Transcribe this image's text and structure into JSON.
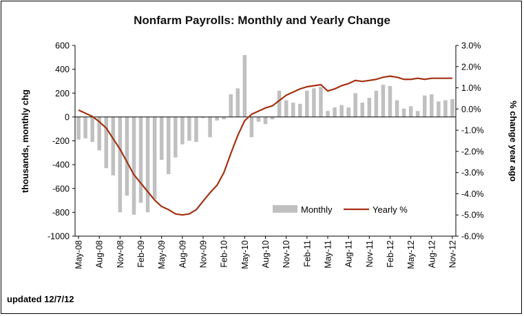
{
  "chart_data": {
    "type": "bar+line",
    "title": "Nonfarm Payrolls: Monthly and Yearly Change",
    "ylabel_left": "thousands, monthly chg",
    "ylabel_right": "% change year ago",
    "ylim_left": [
      -1000,
      600
    ],
    "ylim_right": [
      -6.0,
      3.0
    ],
    "y_ticks_left": [
      "600",
      "400",
      "200",
      "0",
      "-200",
      "-400",
      "-600",
      "-800",
      "-1000"
    ],
    "y_ticks_right": [
      "3.0%",
      "2.0%",
      "1.0%",
      "0.0%",
      "-1.0%",
      "-2.0%",
      "-3.0%",
      "-4.0%",
      "-5.0%",
      "-6.0%"
    ],
    "x_ticks": [
      "May-08",
      "Aug-08",
      "Nov-08",
      "Feb-09",
      "May-09",
      "Aug-09",
      "Nov-09",
      "Feb-10",
      "May-10",
      "Aug-10",
      "Nov-10",
      "Feb-11",
      "May-11",
      "Aug-11",
      "Nov-11",
      "Feb-12",
      "May-12",
      "Aug-12",
      "Nov-12"
    ],
    "categories": [
      "May-08",
      "Jun-08",
      "Jul-08",
      "Aug-08",
      "Sep-08",
      "Oct-08",
      "Nov-08",
      "Dec-08",
      "Jan-09",
      "Feb-09",
      "Mar-09",
      "Apr-09",
      "May-09",
      "Jun-09",
      "Jul-09",
      "Aug-09",
      "Sep-09",
      "Oct-09",
      "Nov-09",
      "Dec-09",
      "Jan-10",
      "Feb-10",
      "Mar-10",
      "Apr-10",
      "May-10",
      "Jun-10",
      "Jul-10",
      "Aug-10",
      "Sep-10",
      "Oct-10",
      "Nov-10",
      "Dec-10",
      "Jan-11",
      "Feb-11",
      "Mar-11",
      "Apr-11",
      "May-11",
      "Jun-11",
      "Jul-11",
      "Aug-11",
      "Sep-11",
      "Oct-11",
      "Nov-11",
      "Dec-11",
      "Jan-12",
      "Feb-12",
      "Mar-12",
      "Apr-12",
      "May-12",
      "Jun-12",
      "Jul-12",
      "Aug-12",
      "Sep-12",
      "Oct-12",
      "Nov-12"
    ],
    "series": [
      {
        "name": "Monthly",
        "type": "bar",
        "axis": "left",
        "color": "#c0c0c0",
        "values": [
          -190,
          -180,
          -210,
          -280,
          -430,
          -490,
          -800,
          -660,
          -820,
          -720,
          -800,
          -690,
          -360,
          -480,
          -340,
          -230,
          -200,
          -210,
          -10,
          -170,
          -30,
          -20,
          190,
          240,
          520,
          -170,
          -40,
          -60,
          -20,
          220,
          140,
          120,
          110,
          220,
          240,
          250,
          50,
          80,
          100,
          80,
          200,
          120,
          160,
          220,
          270,
          260,
          140,
          70,
          90,
          50,
          180,
          190,
          130,
          140,
          150
        ]
      },
      {
        "name": "Yearly %",
        "type": "line",
        "axis": "right",
        "color": "#a33010",
        "values": [
          -0.05,
          -0.2,
          -0.35,
          -0.6,
          -0.9,
          -1.4,
          -1.9,
          -2.5,
          -3.1,
          -3.5,
          -3.9,
          -4.3,
          -4.6,
          -4.75,
          -4.95,
          -5.0,
          -4.95,
          -4.75,
          -4.35,
          -3.95,
          -3.6,
          -3.0,
          -2.1,
          -1.25,
          -0.55,
          -0.25,
          -0.1,
          0.05,
          0.15,
          0.4,
          0.65,
          0.8,
          0.95,
          1.05,
          1.1,
          1.15,
          0.85,
          0.95,
          1.1,
          1.2,
          1.35,
          1.3,
          1.35,
          1.4,
          1.5,
          1.55,
          1.5,
          1.4,
          1.4,
          1.45,
          1.4,
          1.45,
          1.45,
          1.45,
          1.45
        ]
      }
    ],
    "legend": [
      "Monthly",
      "Yearly %"
    ],
    "legend_position": "bottom-right inside plot",
    "grid": false
  },
  "footer_note": "updated 12/7/12"
}
